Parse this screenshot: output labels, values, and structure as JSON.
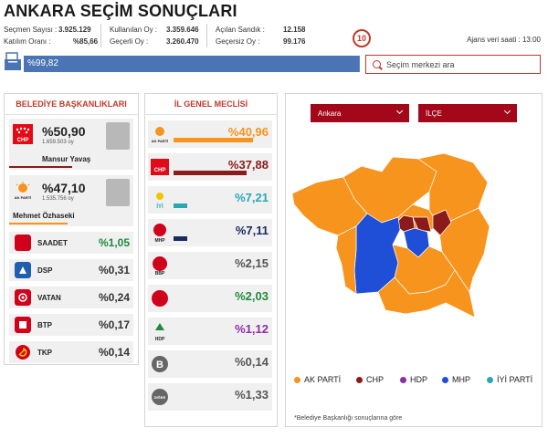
{
  "header": {
    "title": "ANKARA SEÇİM SONUÇLARI",
    "stats": [
      {
        "label": "Seçmen Sayısı :",
        "value": "3.925.129"
      },
      {
        "label": "Katılım Oranı :",
        "value": "%85,66"
      },
      {
        "label": "Kullanılan Oy :",
        "value": "3.359.646"
      },
      {
        "label": "Geçerli Oy :",
        "value": "3.260.470"
      },
      {
        "label": "Açılan Sandık :",
        "value": "12.158"
      },
      {
        "label": "Geçersiz Oy :",
        "value": "99.176"
      }
    ],
    "counter": "10",
    "ajans": "Ajans veri saati : 13:00",
    "progress_text": "%99,82",
    "progress_value": 99.82,
    "search_placeholder": "Seçim merkezi ara"
  },
  "mayor": {
    "heading": "BELEDİYE BAŞKANLIKLARI",
    "candidates": [
      {
        "pct": "%50,90",
        "votes": "1.659.503 oy",
        "name": "Mansur Yavaş",
        "party": "CHP",
        "color": "#e30a17",
        "bar": 50.9
      },
      {
        "pct": "%47,10",
        "votes": "1.535.756 oy",
        "name": "Mehmet Özhaseki",
        "party": "AK PARTİ",
        "color": "#f7941d",
        "bar": 47.1
      }
    ],
    "others": [
      {
        "name": "SAADET",
        "pct": "%1,05",
        "color": "#1e8a3c",
        "logo_color": "#d0021b"
      },
      {
        "name": "DSP",
        "pct": "%0,31",
        "color": "#333",
        "logo_color": "#1f5fb0"
      },
      {
        "name": "VATAN",
        "pct": "%0,24",
        "color": "#333",
        "logo_color": "#d0021b"
      },
      {
        "name": "BTP",
        "pct": "%0,17",
        "color": "#333",
        "logo_color": "#d0021b"
      },
      {
        "name": "TKP",
        "pct": "%0,14",
        "color": "#333",
        "logo_color": "#d0021b"
      }
    ]
  },
  "council": {
    "heading": "İL GENEL MECLİSİ",
    "rows": [
      {
        "logo": "AK PARTİ",
        "pct": "%40,96",
        "value": 40.96,
        "color": "#f7941d",
        "logo_color": "#f7941d"
      },
      {
        "logo": "CHP",
        "pct": "%37,88",
        "value": 37.88,
        "color": "#8b1a1a",
        "logo_color": "#e30a17"
      },
      {
        "logo": "İYİ",
        "pct": "%7,21",
        "value": 7.21,
        "color": "#2aa7b0",
        "logo_color": "#2aa7b0"
      },
      {
        "logo": "MHP",
        "pct": "%7,11",
        "value": 7.11,
        "color": "#1a2a5e",
        "logo_color": "#d0021b"
      },
      {
        "logo": "BBP",
        "pct": "%2,15",
        "value": 2.15,
        "color": "#555",
        "logo_color": "#d0021b"
      },
      {
        "logo": "",
        "pct": "%2,03",
        "value": 2.03,
        "color": "#1e8a3c",
        "logo_color": "#d0021b"
      },
      {
        "logo": "HDP",
        "pct": "%1,12",
        "value": 1.12,
        "color": "#8e2da8",
        "logo_color": "#1e8a3c"
      },
      {
        "logo": "B",
        "pct": "%0,14",
        "value": 0.14,
        "color": "#555",
        "logo_color": "#666"
      },
      {
        "logo": "DİĞER",
        "pct": "%1,33",
        "value": 1.33,
        "color": "#555",
        "logo_color": "#666"
      }
    ]
  },
  "map": {
    "province_select": "Ankara",
    "district_select": "İLÇE",
    "legend": [
      {
        "label": "AK PARTİ",
        "color": "#f7941d"
      },
      {
        "label": "CHP",
        "color": "#8b1a1a"
      },
      {
        "label": "HDP",
        "color": "#8e2da8"
      },
      {
        "label": "MHP",
        "color": "#1f4fd6"
      },
      {
        "label": "İYİ PARTİ",
        "color": "#2aa7b0"
      }
    ],
    "note": "*Belediye Başkanlığı sonuçlarına göre"
  }
}
